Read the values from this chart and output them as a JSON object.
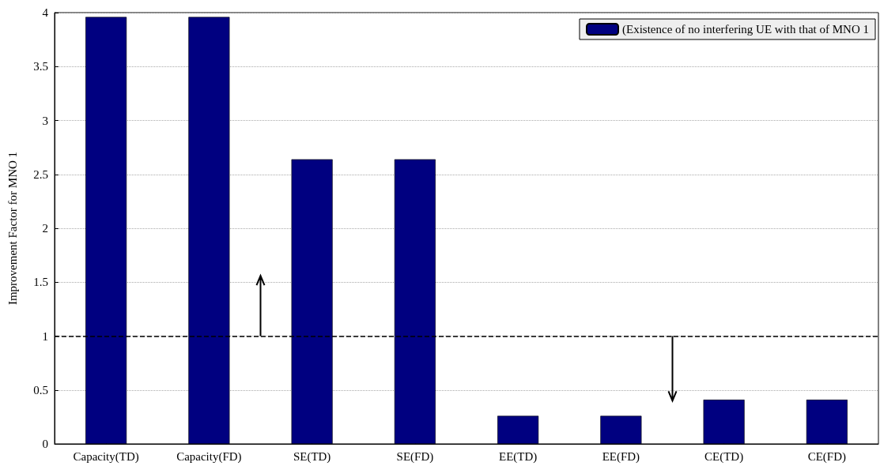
{
  "chart_data": {
    "type": "bar",
    "ylabel": "Improvement Factor for MNO 1",
    "categories": [
      "Capacity(TD)",
      "Capacity(FD)",
      "SE(TD)",
      "SE(FD)",
      "EE(TD)",
      "EE(FD)",
      "CE(TD)",
      "CE(FD)"
    ],
    "series": [
      {
        "name": "(Existence of no interfering UE with that of MNO 1",
        "color": "#000080",
        "values": [
          3.96,
          3.96,
          2.64,
          2.64,
          0.26,
          0.26,
          0.41,
          0.41
        ]
      }
    ],
    "ylim": [
      0,
      4
    ],
    "yticks": [
      0,
      0.5,
      1,
      1.5,
      2,
      2.5,
      3,
      3.5,
      4
    ],
    "grid": "y",
    "legend": "top right",
    "ref_lines": [
      {
        "axis": "y",
        "value": 1,
        "label": null,
        "color": "#000000",
        "line_style": "dashed"
      }
    ]
  }
}
